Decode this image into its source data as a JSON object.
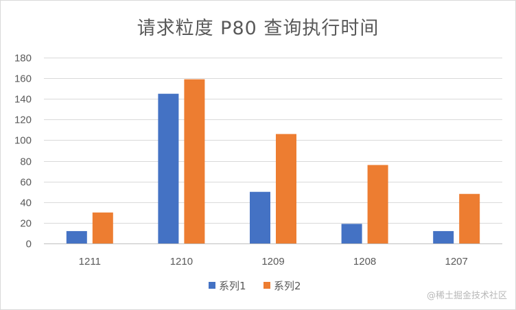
{
  "chart_data": {
    "type": "bar",
    "title": "请求粒度 P80 查询执行时间",
    "categories": [
      "1211",
      "1210",
      "1209",
      "1208",
      "1207"
    ],
    "series": [
      {
        "name": "系列1",
        "color": "#4472c4",
        "values": [
          12,
          145,
          50,
          19,
          12
        ]
      },
      {
        "name": "系列2",
        "color": "#ed7d31",
        "values": [
          30,
          159,
          106,
          76,
          48
        ]
      }
    ],
    "ylim": [
      0,
      180
    ],
    "yticks": [
      0,
      20,
      40,
      60,
      80,
      100,
      120,
      140,
      160,
      180
    ],
    "grid": true,
    "legend": "bottom-center"
  },
  "watermark": "@稀土掘金技术社区"
}
